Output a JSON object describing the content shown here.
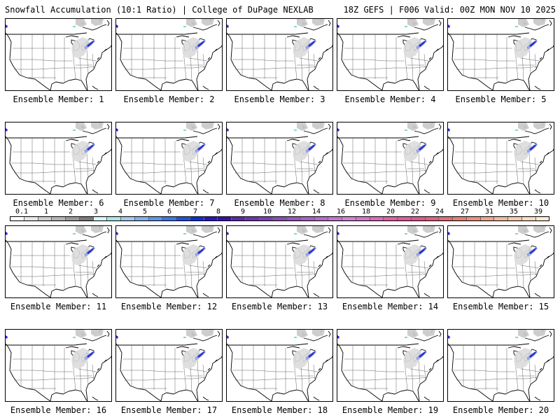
{
  "header": {
    "left": "Snowfall Accumulation (10:1 Ratio) | College of DuPage NEXLAB",
    "right": "18Z GEFS | F006 Valid: 00Z MON NOV 10 2025"
  },
  "panels": [
    {
      "label": "Ensemble Member: 1"
    },
    {
      "label": "Ensemble Member: 2"
    },
    {
      "label": "Ensemble Member: 3"
    },
    {
      "label": "Ensemble Member: 4"
    },
    {
      "label": "Ensemble Member: 5"
    },
    {
      "label": "Ensemble Member: 6"
    },
    {
      "label": "Ensemble Member: 7"
    },
    {
      "label": "Ensemble Member: 8"
    },
    {
      "label": "Ensemble Member: 9"
    },
    {
      "label": "Ensemble Member: 10"
    },
    {
      "label": "Ensemble Member: 11"
    },
    {
      "label": "Ensemble Member: 12"
    },
    {
      "label": "Ensemble Member: 13"
    },
    {
      "label": "Ensemble Member: 14"
    },
    {
      "label": "Ensemble Member: 15"
    },
    {
      "label": "Ensemble Member: 16"
    },
    {
      "label": "Ensemble Member: 17"
    },
    {
      "label": "Ensemble Member: 18"
    },
    {
      "label": "Ensemble Member: 19"
    },
    {
      "label": "Ensemble Member: 20"
    }
  ],
  "legend": {
    "labels": [
      "0.1",
      "1",
      "2",
      "3",
      "4",
      "5",
      "6",
      "7",
      "8",
      "9",
      "10",
      "12",
      "14",
      "16",
      "18",
      "20",
      "22",
      "24",
      "27",
      "31",
      "35",
      "39"
    ],
    "colors": [
      "#ffffff",
      "#e6e6e6",
      "#cccccc",
      "#b3b3b3",
      "#999999",
      "#7a7a7a",
      "#d6f5f5",
      "#a8e6e6",
      "#a6c8f0",
      "#7fb0ee",
      "#5b96ec",
      "#3a78e6",
      "#2050dd",
      "#0a2ed8",
      "#2a12c4",
      "#3a0fa8",
      "#5a2aa6",
      "#6b35b0",
      "#7a40b8",
      "#8a4cc0",
      "#9a55c6",
      "#a85ecc",
      "#b868d2",
      "#c574d6",
      "#d27fd6",
      "#d775c8",
      "#dc6ab8",
      "#e060a8",
      "#e05a9a",
      "#e0588c",
      "#e2607e",
      "#e46c74",
      "#e67c74",
      "#ea907e",
      "#eea48c",
      "#f2b89c",
      "#f6caae",
      "#f8dcc0",
      "#fbead4"
    ]
  }
}
